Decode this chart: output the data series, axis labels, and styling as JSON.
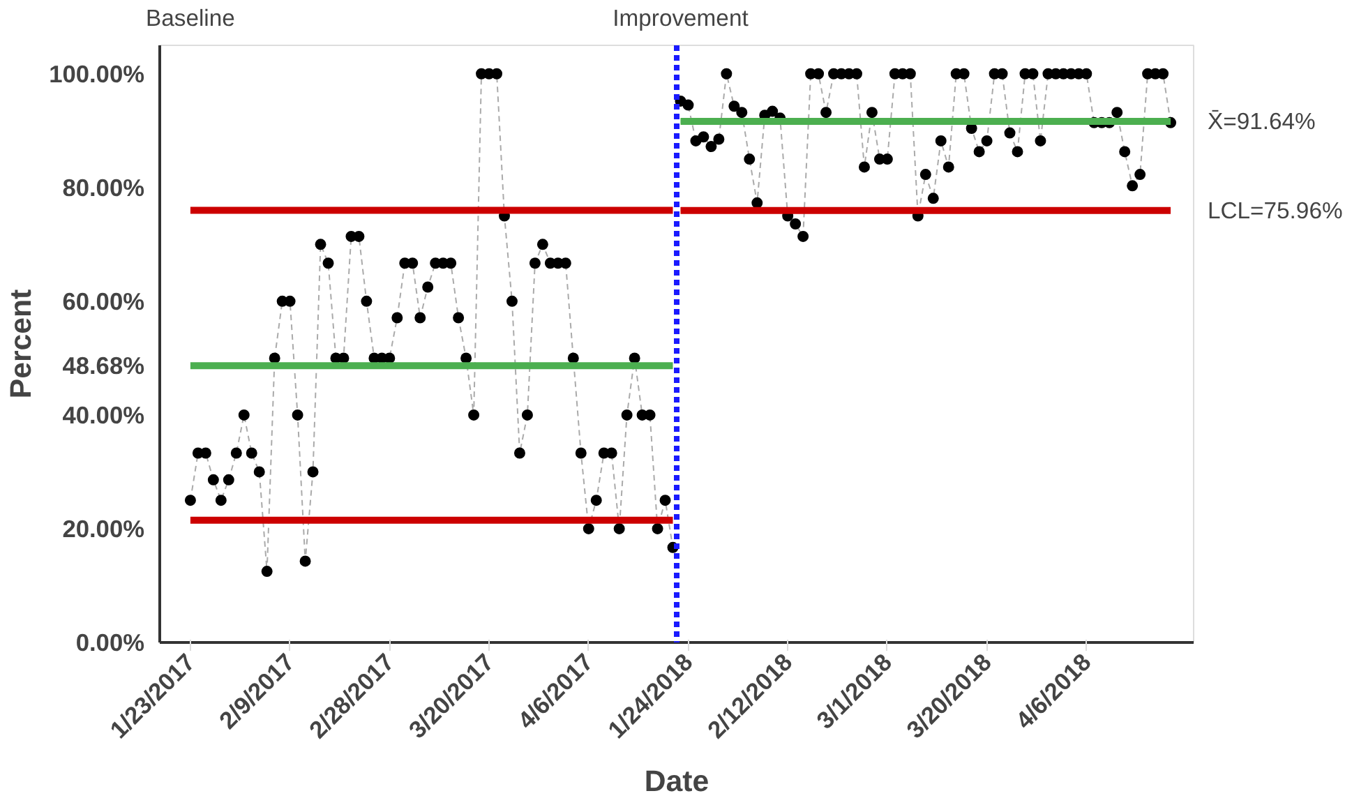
{
  "chart_data": {
    "type": "line",
    "xlabel": "Date",
    "ylabel": "Percent",
    "categories": [
      "1/23/2017",
      null,
      null,
      null,
      null,
      null,
      null,
      null,
      null,
      null,
      null,
      null,
      null,
      "2/9/2017",
      null,
      null,
      null,
      null,
      null,
      null,
      null,
      null,
      null,
      null,
      null,
      null,
      "2/28/2017",
      null,
      null,
      null,
      null,
      null,
      null,
      null,
      null,
      null,
      null,
      null,
      null,
      "3/20/2017",
      null,
      null,
      null,
      null,
      null,
      null,
      null,
      null,
      null,
      null,
      null,
      null,
      "4/6/2017",
      null,
      null,
      null,
      null,
      null,
      null,
      null,
      null,
      null,
      null,
      null,
      null,
      "1/24/2018",
      null,
      null,
      null,
      null,
      null,
      null,
      null,
      null,
      null,
      null,
      null,
      null,
      "2/12/2018",
      null,
      null,
      null,
      null,
      null,
      null,
      null,
      null,
      null,
      null,
      null,
      null,
      "3/1/2018",
      null,
      null,
      null,
      null,
      null,
      null,
      null,
      null,
      null,
      null,
      null,
      null,
      "3/20/2018",
      null,
      null,
      null,
      null,
      null,
      null,
      null,
      null,
      null,
      null,
      null,
      null,
      "4/6/2018",
      null,
      null,
      null,
      null,
      null,
      null,
      null,
      null,
      null,
      null,
      null
    ],
    "ylim": [
      0,
      105
    ],
    "yticks": [
      {
        "value": 0,
        "label": "0.00%"
      },
      {
        "value": 20,
        "label": "20.00%"
      },
      {
        "value": 40,
        "label": "40.00%"
      },
      {
        "value": 60,
        "label": "60.00%"
      },
      {
        "value": 80,
        "label": "80.00%"
      },
      {
        "value": 100,
        "label": "100.00%"
      }
    ],
    "grid": false,
    "series": [
      {
        "color": "#000000",
        "marker": "circle",
        "line_style": "dashed",
        "values": [
          25,
          33.3,
          33.3,
          28.6,
          25,
          28.6,
          33.3,
          40,
          33.3,
          30,
          12.5,
          50,
          60,
          60,
          40,
          14.3,
          30,
          70,
          66.7,
          50,
          50,
          71.4,
          71.4,
          60,
          50,
          50,
          50,
          57.1,
          66.7,
          66.7,
          57.1,
          62.5,
          66.7,
          66.7,
          66.7,
          57.1,
          50,
          40,
          100,
          100,
          100,
          75,
          60,
          33.3,
          40,
          66.7,
          70,
          66.7,
          66.7,
          66.7,
          50,
          33.3,
          20,
          25,
          33.3,
          33.3,
          20,
          40,
          50,
          40,
          40,
          20,
          25,
          16.7,
          null,
          null,
          null,
          null,
          null,
          null,
          null,
          null,
          null,
          null,
          null,
          null,
          null,
          null,
          null,
          null,
          null,
          null,
          null,
          null,
          null,
          null,
          null,
          null,
          null,
          null,
          null,
          null,
          null,
          null,
          null,
          null,
          null,
          null,
          null,
          null,
          null,
          null,
          null,
          null,
          null,
          null,
          null,
          null,
          null,
          null,
          null,
          null,
          null,
          null,
          null,
          null,
          null,
          null,
          null,
          null,
          null,
          null,
          null,
          null,
          null,
          null,
          null,
          null,
          null
        ]
      },
      {
        "color": "#000000",
        "marker": "circle",
        "line_style": "dashed",
        "values": [
          null,
          null,
          null,
          null,
          null,
          null,
          null,
          null,
          null,
          null,
          null,
          null,
          null,
          null,
          null,
          null,
          null,
          null,
          null,
          null,
          null,
          null,
          null,
          null,
          null,
          null,
          null,
          null,
          null,
          null,
          null,
          null,
          null,
          null,
          null,
          null,
          null,
          null,
          null,
          null,
          null,
          null,
          null,
          null,
          null,
          null,
          null,
          null,
          null,
          null,
          null,
          null,
          null,
          null,
          null,
          null,
          null,
          null,
          null,
          null,
          null,
          null,
          null,
          null,
          95.2,
          94.5,
          88.2,
          88.9,
          87.2,
          88.5,
          100,
          94.3,
          93.2,
          85,
          77.3,
          92.7,
          93.4,
          92.2,
          75,
          73.6,
          71.4,
          100,
          100,
          93.2,
          100,
          100,
          100,
          100,
          83.6,
          93.2,
          85,
          85,
          100,
          100,
          100,
          75,
          82.3,
          78.1,
          88.2,
          83.6,
          100,
          100,
          90.4,
          86.3,
          88.2,
          100,
          100,
          89.6,
          86.3,
          100,
          100,
          88.2,
          100,
          100,
          100,
          100,
          100,
          100,
          91.4,
          91.4,
          91.4,
          93.2,
          86.3,
          80.3,
          82.3,
          100,
          100,
          100,
          91.4
        ]
      },
      {
        "color": "#cc0000",
        "marker": "none",
        "line_style": "solid",
        "values": [
          76,
          null,
          null,
          null,
          null,
          null,
          null,
          null,
          null,
          null,
          null,
          null,
          null,
          null,
          null,
          null,
          null,
          null,
          null,
          null,
          null,
          null,
          null,
          null,
          null,
          null,
          null,
          null,
          null,
          null,
          null,
          null,
          null,
          null,
          null,
          null,
          null,
          null,
          null,
          null,
          null,
          null,
          null,
          null,
          null,
          null,
          null,
          null,
          null,
          null,
          null,
          null,
          null,
          null,
          null,
          null,
          null,
          null,
          null,
          null,
          null,
          null,
          null,
          76,
          null,
          null,
          null,
          null,
          null,
          null,
          null,
          null,
          null,
          null,
          null,
          null,
          null,
          null,
          null,
          null,
          null,
          null,
          null,
          null,
          null,
          null,
          null,
          null,
          null,
          null,
          null,
          null,
          null,
          null,
          null,
          null,
          null,
          null,
          null,
          null,
          null,
          null,
          null,
          null,
          null,
          null,
          null,
          null,
          null,
          null,
          null,
          null,
          null,
          null,
          null,
          null,
          null,
          null,
          null,
          null,
          null,
          null,
          null,
          null,
          null,
          null,
          null,
          null,
          null
        ]
      },
      {
        "name": "48.68%",
        "color": "#4caf50",
        "marker": "none",
        "line_style": "solid",
        "values": [
          48.68,
          null,
          null,
          null,
          null,
          null,
          null,
          null,
          null,
          null,
          null,
          null,
          null,
          null,
          null,
          null,
          null,
          null,
          null,
          null,
          null,
          null,
          null,
          null,
          null,
          null,
          null,
          null,
          null,
          null,
          null,
          null,
          null,
          null,
          null,
          null,
          null,
          null,
          null,
          null,
          null,
          null,
          null,
          null,
          null,
          null,
          null,
          null,
          null,
          null,
          null,
          null,
          null,
          null,
          null,
          null,
          null,
          null,
          null,
          null,
          null,
          null,
          null,
          48.68,
          null,
          null,
          null,
          null,
          null,
          null,
          null,
          null,
          null,
          null,
          null,
          null,
          null,
          null,
          null,
          null,
          null,
          null,
          null,
          null,
          null,
          null,
          null,
          null,
          null,
          null,
          null,
          null,
          null,
          null,
          null,
          null,
          null,
          null,
          null,
          null,
          null,
          null,
          null,
          null,
          null,
          null,
          null,
          null,
          null,
          null,
          null,
          null,
          null,
          null,
          null,
          null,
          null,
          null,
          null,
          null,
          null,
          null,
          null,
          null,
          null,
          null,
          null,
          null,
          null
        ]
      },
      {
        "color": "#cc0000",
        "marker": "none",
        "line_style": "solid",
        "values": [
          21.5,
          null,
          null,
          null,
          null,
          null,
          null,
          null,
          null,
          null,
          null,
          null,
          null,
          null,
          null,
          null,
          null,
          null,
          null,
          null,
          null,
          null,
          null,
          null,
          null,
          null,
          null,
          null,
          null,
          null,
          null,
          null,
          null,
          null,
          null,
          null,
          null,
          null,
          null,
          null,
          null,
          null,
          null,
          null,
          null,
          null,
          null,
          null,
          null,
          null,
          null,
          null,
          null,
          null,
          null,
          null,
          null,
          null,
          null,
          null,
          null,
          null,
          null,
          21.5,
          null,
          null,
          null,
          null,
          null,
          null,
          null,
          null,
          null,
          null,
          null,
          null,
          null,
          null,
          null,
          null,
          null,
          null,
          null,
          null,
          null,
          null,
          null,
          null,
          null,
          null,
          null,
          null,
          null,
          null,
          null,
          null,
          null,
          null,
          null,
          null,
          null,
          null,
          null,
          null,
          null,
          null,
          null,
          null,
          null,
          null,
          null,
          null,
          null,
          null,
          null,
          null,
          null,
          null,
          null,
          null,
          null,
          null,
          null,
          null,
          null,
          null,
          null,
          null,
          null
        ]
      },
      {
        "name": "X̄=91.64%",
        "color": "#4caf50",
        "marker": "none",
        "line_style": "solid",
        "values": [
          null,
          null,
          null,
          null,
          null,
          null,
          null,
          null,
          null,
          null,
          null,
          null,
          null,
          null,
          null,
          null,
          null,
          null,
          null,
          null,
          null,
          null,
          null,
          null,
          null,
          null,
          null,
          null,
          null,
          null,
          null,
          null,
          null,
          null,
          null,
          null,
          null,
          null,
          null,
          null,
          null,
          null,
          null,
          null,
          null,
          null,
          null,
          null,
          null,
          null,
          null,
          null,
          null,
          null,
          null,
          null,
          null,
          null,
          null,
          null,
          null,
          null,
          null,
          null,
          91.64,
          null,
          null,
          null,
          null,
          null,
          null,
          null,
          null,
          null,
          null,
          null,
          null,
          null,
          null,
          null,
          null,
          null,
          null,
          null,
          null,
          null,
          null,
          null,
          null,
          null,
          null,
          null,
          null,
          null,
          null,
          null,
          null,
          null,
          null,
          null,
          null,
          null,
          null,
          null,
          null,
          null,
          null,
          null,
          null,
          null,
          null,
          null,
          null,
          null,
          null,
          null,
          null,
          null,
          null,
          null,
          null,
          null,
          null,
          null,
          null,
          null,
          null,
          null,
          91.64
        ]
      },
      {
        "name": "LCL=75.96%",
        "color": "#cc0000",
        "marker": "none",
        "line_style": "solid",
        "values": [
          null,
          null,
          null,
          null,
          null,
          null,
          null,
          null,
          null,
          null,
          null,
          null,
          null,
          null,
          null,
          null,
          null,
          null,
          null,
          null,
          null,
          null,
          null,
          null,
          null,
          null,
          null,
          null,
          null,
          null,
          null,
          null,
          null,
          null,
          null,
          null,
          null,
          null,
          null,
          null,
          null,
          null,
          null,
          null,
          null,
          null,
          null,
          null,
          null,
          null,
          null,
          null,
          null,
          null,
          null,
          null,
          null,
          null,
          null,
          null,
          null,
          null,
          null,
          null,
          75.96,
          null,
          null,
          null,
          null,
          null,
          null,
          null,
          null,
          null,
          null,
          null,
          null,
          null,
          null,
          null,
          null,
          null,
          null,
          null,
          null,
          null,
          null,
          null,
          null,
          null,
          null,
          null,
          null,
          null,
          null,
          null,
          null,
          null,
          null,
          null,
          null,
          null,
          null,
          null,
          null,
          null,
          null,
          null,
          null,
          null,
          null,
          null,
          null,
          null,
          null,
          null,
          null,
          null,
          null,
          null,
          null,
          null,
          null,
          null,
          null,
          null,
          null,
          null,
          75.96
        ]
      }
    ],
    "annotations": [
      "Baseline",
      "Improvement"
    ]
  }
}
